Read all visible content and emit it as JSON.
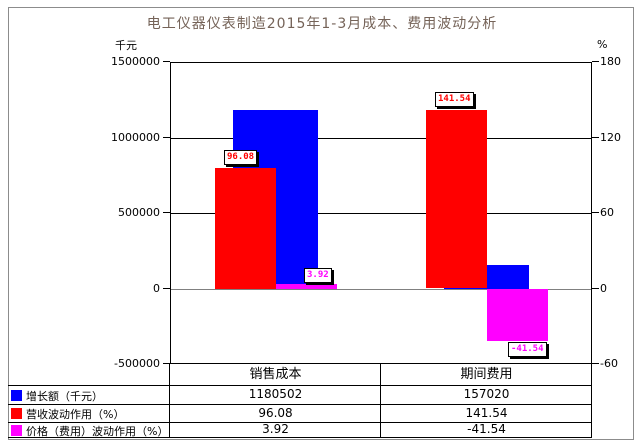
{
  "title": "电工仪器仪表制造2015年1-3月成本、费用波动分析",
  "axes": {
    "left_unit": "千元",
    "right_unit": "%",
    "left_ticks": [
      "1500000",
      "1000000",
      "500000",
      "0",
      "-500000"
    ],
    "right_ticks": [
      "180",
      "120",
      "60",
      "0",
      "-60"
    ]
  },
  "chart_data": {
    "type": "bar",
    "title": "电工仪器仪表制造2015年1-3月成本、费用波动分析",
    "categories": [
      "销售成本",
      "期间费用"
    ],
    "series": [
      {
        "name": "增长额（千元）",
        "axis": "left",
        "color": "#0000ff",
        "values": [
          1180502,
          157020
        ],
        "point_labels": null
      },
      {
        "name": "营收波动作用（%）",
        "axis": "right",
        "color": "#ff0000",
        "values": [
          96.08,
          141.54
        ],
        "point_labels": [
          "96.08",
          "141.54"
        ]
      },
      {
        "name": "价格（费用）波动作用（%）",
        "axis": "right",
        "color": "#ff00ff",
        "values": [
          3.92,
          -41.54
        ],
        "point_labels": [
          "3.92",
          "-41.54"
        ]
      }
    ],
    "left_axis": {
      "unit": "千元",
      "min": -500000,
      "max": 1500000,
      "tick_step": 500000
    },
    "right_axis": {
      "unit": "%",
      "min": -60,
      "max": 180,
      "tick_step": 60
    },
    "grid": true,
    "legend_position": "bottom-table"
  },
  "table": {
    "headers": [
      "销售成本",
      "期间费用"
    ],
    "rows": [
      {
        "label": "增长额（千元）",
        "swatch_color": "#0000ff",
        "values": [
          "1180502",
          "157020"
        ]
      },
      {
        "label": "营收波动作用（%）",
        "swatch_color": "#ff0000",
        "values": [
          "96.08",
          "141.54"
        ]
      },
      {
        "label": "价格（费用）波动作用（%）",
        "swatch_color": "#ff00ff",
        "values": [
          "3.92",
          "-41.54"
        ]
      }
    ]
  },
  "colors": {
    "blue": "#0000ff",
    "red": "#ff0000",
    "magenta": "#ff00ff",
    "zero_line": "#808080",
    "grid_line": "#000000",
    "frame": "#8c8c8c",
    "title_text": "#756358"
  }
}
